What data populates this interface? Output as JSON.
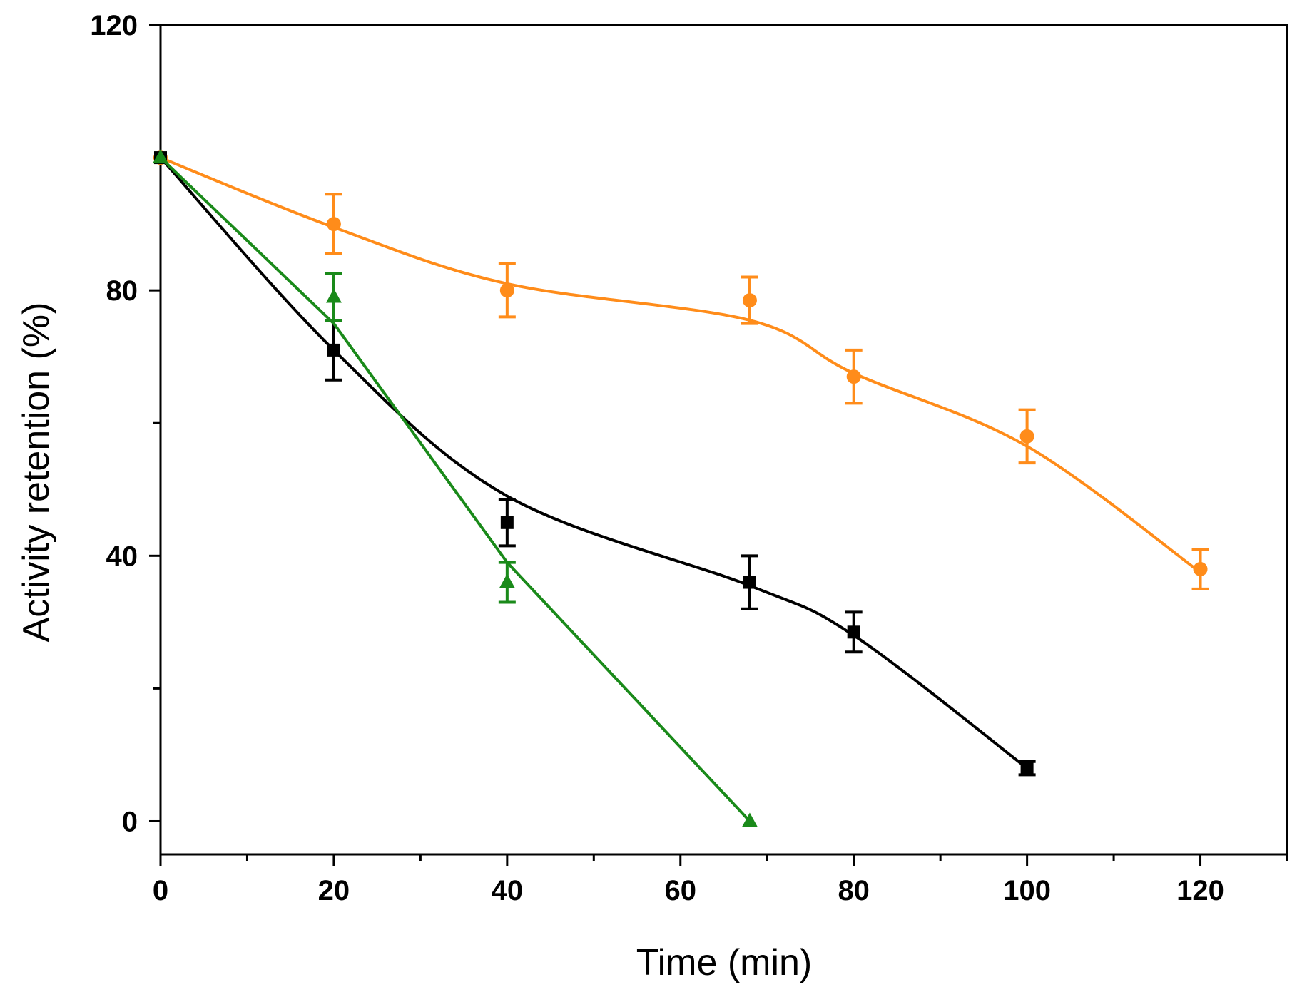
{
  "chart_data": {
    "type": "line",
    "title": "",
    "xlabel": "Time (min)",
    "ylabel": "Activity retention (%)",
    "xlim": [
      0,
      130
    ],
    "ylim": [
      -5,
      120
    ],
    "xticks": [
      0,
      20,
      40,
      60,
      80,
      100,
      120
    ],
    "yticks": [
      0,
      40,
      80,
      120
    ],
    "xtick_labels": [
      "0",
      "20",
      "40",
      "60",
      "80",
      "100",
      "120"
    ],
    "ytick_labels": [
      "0",
      "40",
      "80",
      "120"
    ],
    "x_minor_ticks": [
      10,
      30,
      50,
      70,
      90,
      110,
      130
    ],
    "y_minor_ticks": [
      20,
      60,
      100
    ],
    "grid": false,
    "legend": "none",
    "series": [
      {
        "name": "orange",
        "color": "#ff8c1a",
        "marker": "circle",
        "x": [
          0,
          20,
          40,
          68,
          80,
          100,
          120
        ],
        "y": [
          100,
          90,
          80,
          78.5,
          67,
          58,
          38
        ],
        "err": [
          0,
          4.5,
          4,
          3.5,
          4,
          4,
          3
        ],
        "fit_x": [
          0,
          20,
          40,
          68,
          80,
          100,
          120
        ],
        "fit_y": [
          100,
          89.5,
          81,
          75.5,
          67.5,
          56.5,
          37.5
        ]
      },
      {
        "name": "black",
        "color": "#000000",
        "marker": "square",
        "x": [
          0,
          20,
          40,
          68,
          80,
          100
        ],
        "y": [
          100,
          71,
          45,
          36,
          28.5,
          8
        ],
        "err": [
          0,
          4.5,
          3.5,
          4,
          3,
          1
        ],
        "fit_x": [
          0,
          20,
          40,
          68,
          80,
          100
        ],
        "fit_y": [
          100,
          71,
          49,
          35.5,
          28,
          8
        ]
      },
      {
        "name": "green",
        "color": "#1a8a1a",
        "marker": "triangle",
        "x": [
          0,
          20,
          40,
          68
        ],
        "y": [
          100,
          79,
          36,
          0
        ],
        "err": [
          0,
          3.5,
          3,
          0
        ],
        "fit_x": [
          0,
          20,
          40,
          68
        ],
        "fit_y": [
          100,
          75,
          39,
          0
        ]
      }
    ]
  }
}
